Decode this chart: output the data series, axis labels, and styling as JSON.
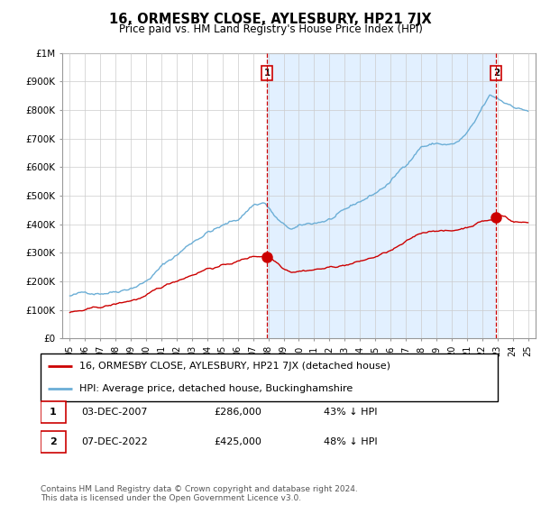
{
  "title": "16, ORMESBY CLOSE, AYLESBURY, HP21 7JX",
  "subtitle": "Price paid vs. HM Land Registry's House Price Index (HPI)",
  "hpi_label": "HPI: Average price, detached house, Buckinghamshire",
  "price_label": "16, ORMESBY CLOSE, AYLESBURY, HP21 7JX (detached house)",
  "hpi_color": "#6baed6",
  "price_color": "#cc0000",
  "fill_color": "#ddeeff",
  "point1_date": "03-DEC-2007",
  "point1_price": 286000,
  "point1_note": "43% ↓ HPI",
  "point2_date": "07-DEC-2022",
  "point2_price": 425000,
  "point2_note": "48% ↓ HPI",
  "footer": "Contains HM Land Registry data © Crown copyright and database right 2024.\nThis data is licensed under the Open Government Licence v3.0.",
  "ylim": [
    0,
    1000000
  ],
  "yticks": [
    0,
    100000,
    200000,
    300000,
    400000,
    500000,
    600000,
    700000,
    800000,
    900000,
    1000000
  ],
  "ytick_labels": [
    "£0",
    "£100K",
    "£200K",
    "£300K",
    "£400K",
    "£500K",
    "£600K",
    "£700K",
    "£800K",
    "£900K",
    "£1M"
  ],
  "t1_year": 2007.917,
  "t2_year": 2022.917,
  "xmin": 1994.5,
  "xmax": 2025.5
}
